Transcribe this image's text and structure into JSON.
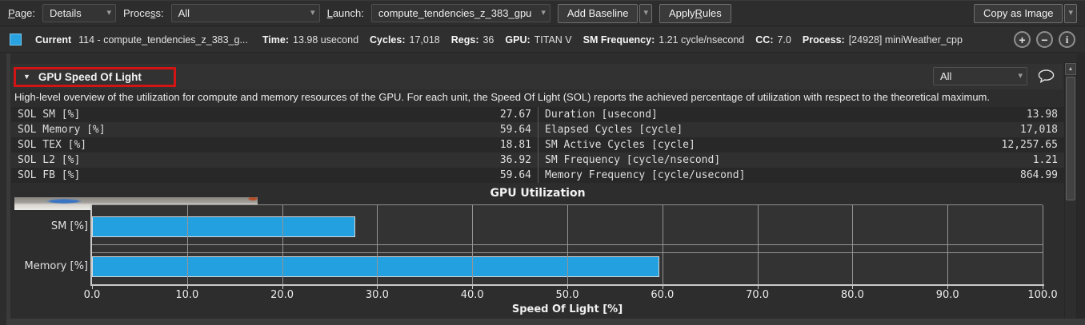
{
  "toolbar": {
    "page_label": {
      "pre": "",
      "key": "P",
      "post": "age:"
    },
    "page_value": "Details",
    "process_label": {
      "pre": "Proce",
      "key": "s",
      "post": "s:"
    },
    "process_value": "All",
    "launch_label": {
      "pre": "",
      "key": "L",
      "post": "aunch:"
    },
    "launch_value": "compute_tendencies_z_383_gpu",
    "add_baseline_label": "Add Baseline",
    "apply_rules_label": {
      "pre": "Apply ",
      "key": "R",
      "post": "ules"
    },
    "copy_as_image_label": "Copy as Image"
  },
  "current_row": {
    "swatch_color": "#28a2e0",
    "label": "Current",
    "kernel": "114 - compute_tendencies_z_383_g...",
    "metrics": [
      {
        "label": "Time:",
        "value": "13.98 usecond"
      },
      {
        "label": "Cycles:",
        "value": "17,018"
      },
      {
        "label": "Regs:",
        "value": "36"
      },
      {
        "label": "GPU:",
        "value": "TITAN V"
      },
      {
        "label": "SM Frequency:",
        "value": "1.21 cycle/nsecond"
      },
      {
        "label": "CC:",
        "value": "7.0"
      },
      {
        "label": "Process:",
        "value": "[24928] miniWeather_cpp"
      }
    ]
  },
  "section": {
    "title": "GPU Speed Of Light",
    "filter_value": "All",
    "description": "High-level overview of the utilization for compute and memory resources of the GPU. For each unit, the Speed Of Light (SOL) reports the achieved percentage of utilization with respect to the theoretical maximum.",
    "highlight_color": "#d21414"
  },
  "sol_table": {
    "left": [
      [
        "SOL SM [%]",
        "27.67"
      ],
      [
        "SOL Memory [%]",
        "59.64"
      ],
      [
        "SOL TEX [%]",
        "18.81"
      ],
      [
        "SOL L2 [%]",
        "36.92"
      ],
      [
        "SOL FB [%]",
        "59.64"
      ]
    ],
    "right": [
      [
        "Duration [usecond]",
        "13.98"
      ],
      [
        "Elapsed Cycles [cycle]",
        "17,018"
      ],
      [
        "SM Active Cycles [cycle]",
        "12,257.65"
      ],
      [
        "SM Frequency [cycle/nsecond]",
        "1.21"
      ],
      [
        "Memory Frequency [cycle/usecond]",
        "864.99"
      ]
    ]
  },
  "chart_data": {
    "type": "bar",
    "orientation": "horizontal",
    "title": "GPU Utilization",
    "categories": [
      "SM [%]",
      "Memory [%]"
    ],
    "values": [
      27.67,
      59.64
    ],
    "xlabel": "Speed Of Light [%]",
    "xlim": [
      0,
      100
    ],
    "xticks": [
      0,
      10,
      20,
      30,
      40,
      50,
      60,
      70,
      80,
      90,
      100
    ],
    "xtick_labels": [
      "0.0",
      "10.0",
      "20.0",
      "30.0",
      "40.0",
      "50.0",
      "60.0",
      "70.0",
      "80.0",
      "90.0",
      "100.0"
    ],
    "bar_color": "#22a0e0",
    "grid": true,
    "legend": false
  },
  "icons": {
    "dropdown_arrow": "▾",
    "collapse_arrow": "▼",
    "scroll_up_arrow": "▲",
    "add_baseline_glyph": "+",
    "remove_baseline_glyph": "−",
    "info_glyph": "i"
  }
}
